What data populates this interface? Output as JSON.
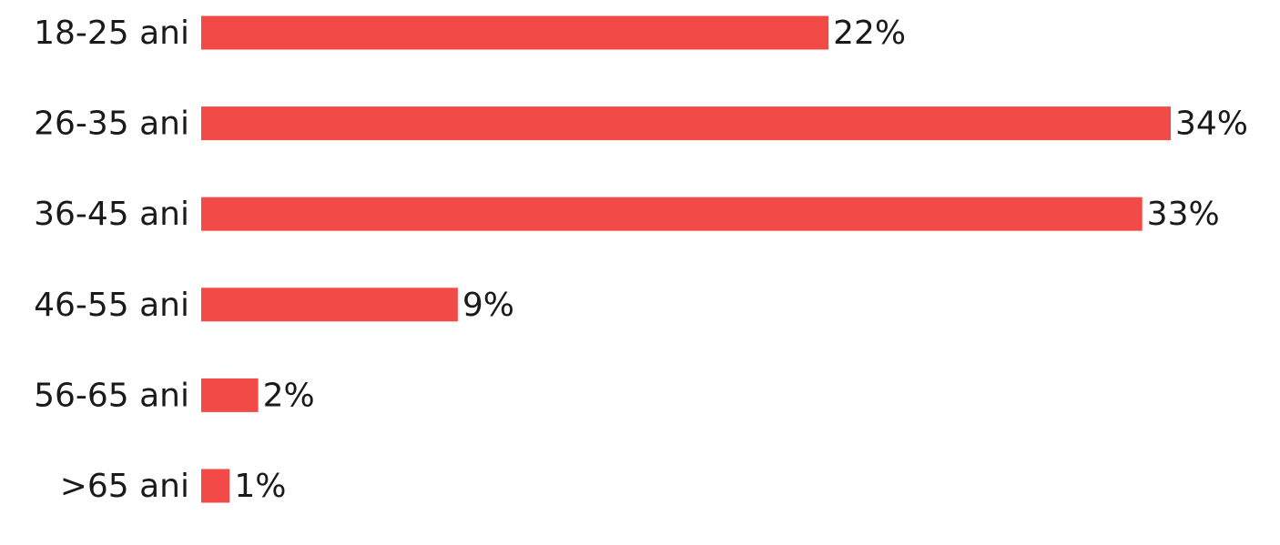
{
  "chart_data": {
    "type": "bar",
    "orientation": "horizontal",
    "categories": [
      "18-25 ani",
      "26-35 ani",
      "36-45 ani",
      "46-55 ani",
      "56-65 ani",
      ">65 ani"
    ],
    "values": [
      22,
      34,
      33,
      9,
      2,
      1
    ],
    "value_labels": [
      "22%",
      "34%",
      "33%",
      "9%",
      "2%",
      "1%"
    ],
    "color": "#f24a46"
  }
}
